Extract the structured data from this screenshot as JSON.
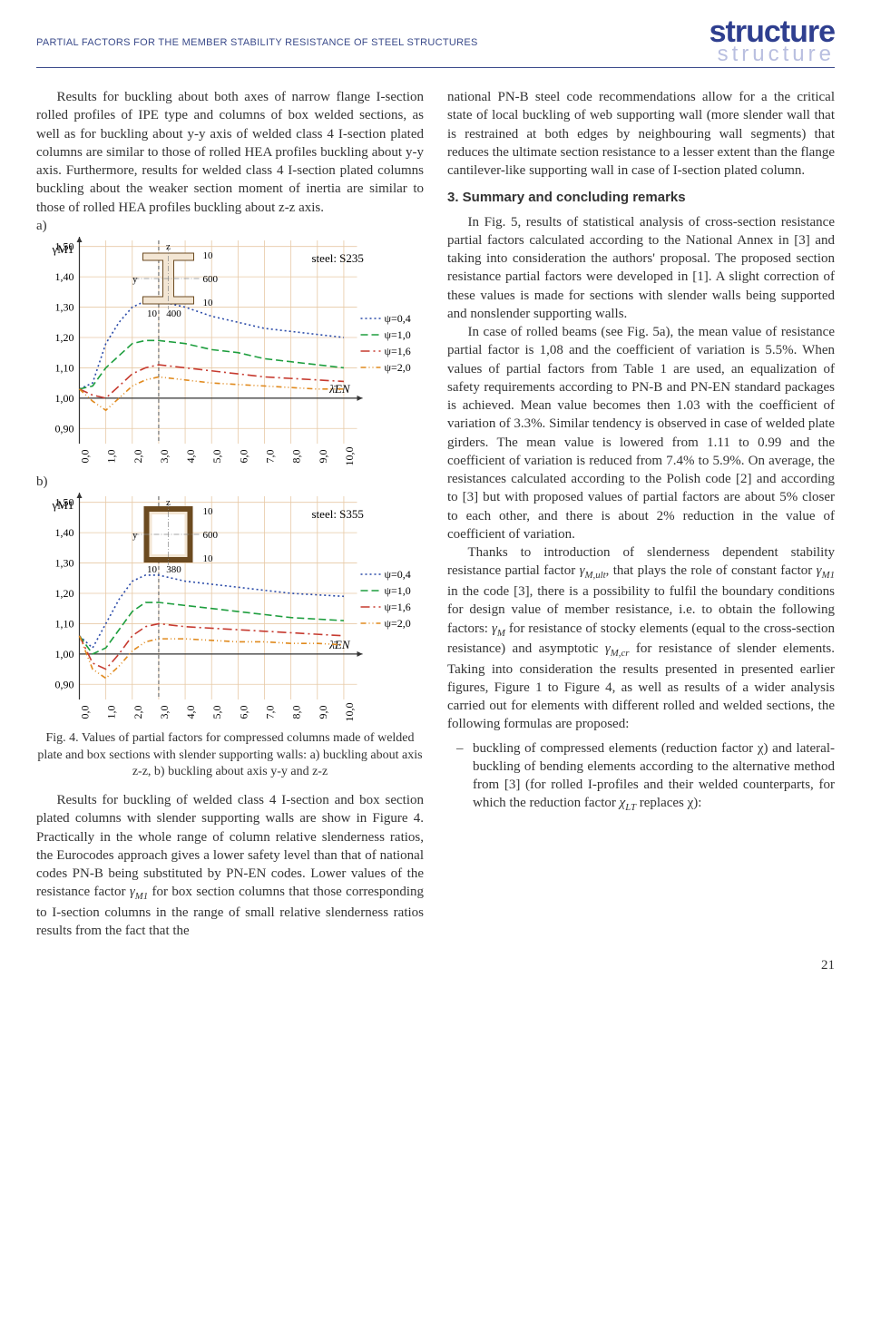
{
  "header": {
    "running_title": "PARTIAL FACTORS FOR THE MEMBER STABILITY RESISTANCE OF STEEL STRUCTURES",
    "brand_top": "structure",
    "brand_bot": "structure"
  },
  "left": {
    "para1": "Results for buckling about both axes of narrow flange I-section rolled profiles of IPE type and columns of box welded sections, as well as for buckling about y-y axis of welded class 4 I-section plated columns are similar to those of rolled HEA profiles buckling about y-y axis. Furthermore, results for welded class 4 I-section plated columns buckling about the weaker section moment of inertia are similar to those of rolled HEA profiles buckling about z-z axis.",
    "label_a": "a)",
    "label_b": "b)",
    "fig_caption": "Fig. 4. Values of partial factors for compressed columns made of welded plate and box sections with slender supporting walls: a) buckling about axis z-z, b) buckling about axis y-y and z-z",
    "para2_a": "Results for buckling of welded class 4 I-section and box section plated columns with slender supporting walls are show in Figure 4. Practically in the whole range of column relative slenderness ratios, the Eurocodes approach gives a lower safety level than that of national codes PN-B being substituted by PN-EN codes. Lower values of the resistance factor ",
    "para2_b": " for box section columns that those corresponding to I-section columns in the range of small relative slenderness ratios results from the fact that the"
  },
  "right": {
    "para1": "national PN-B steel code recommendations allow for a the critical state of local buckling of web supporting wall (more slender wall that is restrained at both edges by neighbouring wall segments) that reduces the ultimate section resistance to a lesser extent than the flange cantilever-like supporting wall in case of I-section plated column.",
    "section_title": "3. Summary and concluding remarks",
    "para2": "In Fig. 5, results of statistical analysis of cross-section resistance partial factors calculated according to the National Annex in [3] and taking into consideration the authors' proposal. The proposed section resistance partial factors were developed in [1]. A slight correction of these values is made for sections with slender walls being supported and nonslender supporting walls.",
    "para3": "In case of rolled beams (see Fig. 5a), the mean value of resistance partial factor is 1,08 and the coefficient of variation is 5.5%. When values of partial factors from Table 1 are used, an equalization of safety requirements according to PN-B and PN-EN standard packages is achieved. Mean value becomes then 1.03 with the coefficient of variation of 3.3%. Similar tendency is observed in case of welded plate girders. The mean value is lowered from 1.11 to 0.99 and the coefficient of variation is reduced from 7.4% to 5.9%. On average, the resistances calculated according to the Polish code [2] and according to [3] but with proposed values of partial factors are about 5% closer to each other, and there is about 2% reduction in the value of coefficient of variation.",
    "para4_a": "Thanks to introduction of slenderness dependent stability resistance partial factor ",
    "para4_b": ", that plays the role of constant factor ",
    "para4_c": " in the code [3], there is a possibility to fulfil the boundary conditions for design value of member resistance, i.e. to obtain the following factors: ",
    "para4_d": " for resistance of stocky elements (equal to the cross-section resistance) and asymptotic ",
    "para4_e": " for resistance of slender elements. Taking into consideration the results presented in presented earlier figures, Figure 1 to Figure 4, as well as results of a wider analysis carried out for elements with different rolled and welded sections, the following formulas are proposed:",
    "bullet1_a": "buckling of compressed elements (reduction factor χ) and lateral-buckling of bending elements according to the alternative method from [3] (for rolled I-profiles and their welded counterparts, for which the reduction factor ",
    "bullet1_b": " replaces χ):"
  },
  "page_number": "21",
  "chart_a": {
    "type": "line",
    "steel_label": "steel: S235",
    "section_dims": {
      "width": "400",
      "height": "600",
      "tf": "10",
      "tw": "10"
    },
    "y_label": "γM1",
    "y_ticks": [
      "0,90",
      "1,00",
      "1,10",
      "1,20",
      "1,30",
      "1,40",
      "1,50"
    ],
    "x_ticks": [
      "0,0",
      "1,0",
      "2,0",
      "3,0",
      "4,0",
      "5,0",
      "6,0",
      "7,0",
      "8,0",
      "9,0",
      "10,0"
    ],
    "x_label": "λ̄EN",
    "ylim": [
      0.85,
      1.52
    ],
    "xlim": [
      0,
      10.5
    ],
    "grid_color": "#e7c9a6",
    "axis_color": "#333333",
    "background_color": "#ffffff",
    "series": [
      {
        "label": "ψ=0,4",
        "color": "#2a4aa8",
        "dash": "2,3",
        "width": 1.6,
        "points": [
          [
            0,
            1.03
          ],
          [
            0.5,
            1.05
          ],
          [
            1,
            1.18
          ],
          [
            1.5,
            1.25
          ],
          [
            2,
            1.3
          ],
          [
            2.5,
            1.32
          ],
          [
            3,
            1.32
          ],
          [
            4,
            1.3
          ],
          [
            5,
            1.27
          ],
          [
            6,
            1.25
          ],
          [
            7,
            1.23
          ],
          [
            8,
            1.22
          ],
          [
            9,
            1.21
          ],
          [
            10,
            1.2
          ]
        ]
      },
      {
        "label": "ψ=1,0",
        "color": "#1e9e3e",
        "dash": "8,4",
        "width": 1.6,
        "points": [
          [
            0,
            1.03
          ],
          [
            0.5,
            1.04
          ],
          [
            1,
            1.1
          ],
          [
            1.5,
            1.14
          ],
          [
            2,
            1.18
          ],
          [
            2.5,
            1.19
          ],
          [
            3,
            1.19
          ],
          [
            4,
            1.18
          ],
          [
            5,
            1.16
          ],
          [
            6,
            1.15
          ],
          [
            7,
            1.13
          ],
          [
            8,
            1.12
          ],
          [
            9,
            1.11
          ],
          [
            10,
            1.1
          ]
        ]
      },
      {
        "label": "ψ=1,6",
        "color": "#c63a2f",
        "dash": "10,4,2,4",
        "width": 1.6,
        "points": [
          [
            0,
            1.03
          ],
          [
            0.5,
            1.01
          ],
          [
            1,
            1.0
          ],
          [
            1.5,
            1.04
          ],
          [
            2,
            1.08
          ],
          [
            2.5,
            1.1
          ],
          [
            3,
            1.11
          ],
          [
            4,
            1.1
          ],
          [
            5,
            1.09
          ],
          [
            6,
            1.08
          ],
          [
            7,
            1.07
          ],
          [
            8,
            1.065
          ],
          [
            9,
            1.06
          ],
          [
            10,
            1.055
          ]
        ]
      },
      {
        "label": "ψ=2,0",
        "color": "#e08a1e",
        "dash": "6,3,1,3,1,3",
        "width": 1.6,
        "points": [
          [
            0,
            1.03
          ],
          [
            0.5,
            0.99
          ],
          [
            1,
            0.96
          ],
          [
            1.5,
            1.0
          ],
          [
            2,
            1.04
          ],
          [
            2.5,
            1.06
          ],
          [
            3,
            1.07
          ],
          [
            4,
            1.06
          ],
          [
            5,
            1.05
          ],
          [
            6,
            1.045
          ],
          [
            7,
            1.04
          ],
          [
            8,
            1.035
          ],
          [
            9,
            1.03
          ],
          [
            10,
            1.03
          ]
        ]
      }
    ],
    "ref_x": 3
  },
  "chart_b": {
    "type": "line",
    "steel_label": "steel: S355",
    "section_dims": {
      "width": "380",
      "height": "600",
      "tf": "10",
      "tw": "10"
    },
    "y_label": "γM1",
    "y_ticks": [
      "0,90",
      "1,00",
      "1,10",
      "1,20",
      "1,30",
      "1,40",
      "1,50"
    ],
    "x_ticks": [
      "0,0",
      "1,0",
      "2,0",
      "3,0",
      "4,0",
      "5,0",
      "6,0",
      "7,0",
      "8,0",
      "9,0",
      "10,0"
    ],
    "x_label": "λ̄EN",
    "ylim": [
      0.85,
      1.52
    ],
    "xlim": [
      0,
      10.5
    ],
    "grid_color": "#e7c9a6",
    "axis_color": "#333333",
    "background_color": "#ffffff",
    "series": [
      {
        "label": "ψ=0,4",
        "color": "#2a4aa8",
        "dash": "2,3",
        "width": 1.6,
        "points": [
          [
            0,
            1.06
          ],
          [
            0.5,
            1.02
          ],
          [
            1,
            1.1
          ],
          [
            1.5,
            1.18
          ],
          [
            2,
            1.24
          ],
          [
            2.5,
            1.26
          ],
          [
            3,
            1.26
          ],
          [
            4,
            1.24
          ],
          [
            5,
            1.23
          ],
          [
            6,
            1.22
          ],
          [
            7,
            1.21
          ],
          [
            8,
            1.2
          ],
          [
            9,
            1.195
          ],
          [
            10,
            1.19
          ]
        ]
      },
      {
        "label": "ψ=1,0",
        "color": "#1e9e3e",
        "dash": "8,4",
        "width": 1.6,
        "points": [
          [
            0,
            1.06
          ],
          [
            0.5,
            1.0
          ],
          [
            1,
            1.02
          ],
          [
            1.5,
            1.08
          ],
          [
            2,
            1.14
          ],
          [
            2.5,
            1.17
          ],
          [
            3,
            1.17
          ],
          [
            4,
            1.16
          ],
          [
            5,
            1.15
          ],
          [
            6,
            1.14
          ],
          [
            7,
            1.13
          ],
          [
            8,
            1.12
          ],
          [
            9,
            1.115
          ],
          [
            10,
            1.11
          ]
        ]
      },
      {
        "label": "ψ=1,6",
        "color": "#c63a2f",
        "dash": "10,4,2,4",
        "width": 1.6,
        "points": [
          [
            0,
            1.06
          ],
          [
            0.5,
            0.97
          ],
          [
            1,
            0.95
          ],
          [
            1.5,
            1.0
          ],
          [
            2,
            1.06
          ],
          [
            2.5,
            1.09
          ],
          [
            3,
            1.1
          ],
          [
            4,
            1.09
          ],
          [
            5,
            1.085
          ],
          [
            6,
            1.08
          ],
          [
            7,
            1.075
          ],
          [
            8,
            1.07
          ],
          [
            9,
            1.065
          ],
          [
            10,
            1.06
          ]
        ]
      },
      {
        "label": "ψ=2,0",
        "color": "#e08a1e",
        "dash": "6,3,1,3,1,3",
        "width": 1.6,
        "points": [
          [
            0,
            1.06
          ],
          [
            0.5,
            0.95
          ],
          [
            1,
            0.92
          ],
          [
            1.5,
            0.96
          ],
          [
            2,
            1.01
          ],
          [
            2.5,
            1.04
          ],
          [
            3,
            1.05
          ],
          [
            4,
            1.05
          ],
          [
            5,
            1.045
          ],
          [
            6,
            1.04
          ],
          [
            7,
            1.04
          ],
          [
            8,
            1.035
          ],
          [
            9,
            1.035
          ],
          [
            10,
            1.03
          ]
        ]
      }
    ],
    "ref_x": 3
  }
}
